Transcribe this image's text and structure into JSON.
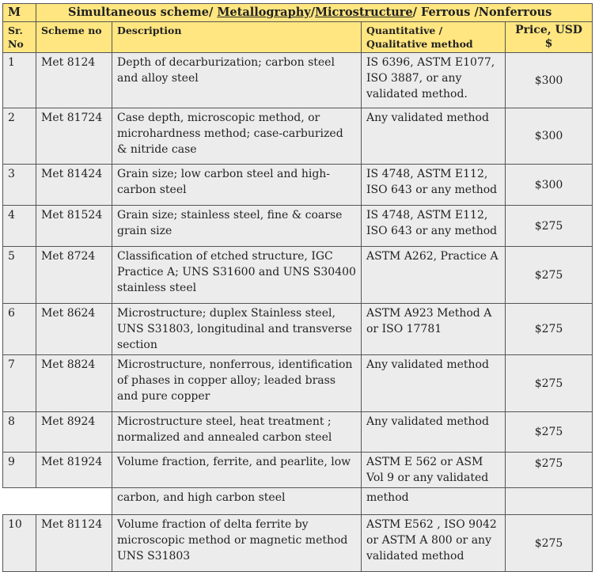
{
  "header": {
    "col_m": "M",
    "title_parts": [
      "Simultaneous scheme/ ",
      "Metallography",
      "/",
      "Microstructure",
      "/ Ferrous /Nonferrous"
    ],
    "sr_no": "Sr. No",
    "scheme_no": "Scheme no",
    "description": "Description",
    "method": "Quantitative / Qualitative method",
    "price": "Price, USD $"
  },
  "rows": [
    {
      "sr": "1",
      "scheme": "Met 8124",
      "desc": "Depth of decarburization;  carbon steel  and alloy steel",
      "method": "IS 6396, ASTM E1077, ISO 3887, or any validated method.",
      "price": "$300"
    },
    {
      "sr": "2",
      "scheme": "Met 81724",
      "desc": "Case depth, microscopic method, or microhardness method;  case-carburized  & nitride case",
      "method": "Any validated method",
      "price": "$300"
    },
    {
      "sr": "3",
      "scheme": "Met 81424",
      "desc": "Grain size; low carbon steel  and  high-carbon steel",
      "method": "IS 4748, ASTM E112, ISO 643 or any method",
      "price": "$300"
    },
    {
      "sr": "4",
      "scheme": "Met 81524",
      "desc": "Grain size; stainless steel, fine  &  coarse grain size",
      "method": "IS 4748, ASTM E112, ISO 643 or any method",
      "price": "$275"
    },
    {
      "sr": "5",
      "scheme": "Met 8724",
      "desc": "Classification of etched structure, IGC Practice A;  UNS S31600 and  UNS S30400 stainless steel",
      "method": "ASTM A262, Practice A",
      "price": "$275"
    },
    {
      "sr": "6",
      "scheme": "Met 8624",
      "desc": "Microstructure;  duplex Stainless steel, UNS S31803, longitudinal and  transverse section",
      "method": "ASTM A923 Method A or ISO 17781",
      "price": "$275"
    },
    {
      "sr": "7",
      "scheme": "Met 8824",
      "desc": "Microstructure,  nonferrous,  identification of phases in copper alloy;  leaded brass  and pure copper",
      "method": "Any validated method",
      "price": "$275"
    },
    {
      "sr": "8",
      "scheme": "Met 8924",
      "desc": "Microstructure steel, heat treatment ; normalized and    annealed carbon steel",
      "method": "Any validated method",
      "price": "$275"
    },
    {
      "sr": "9",
      "scheme": "Met 81924",
      "desc": "Volume fraction, ferrite, and pearlite, low",
      "method": "ASTM E 562 or ASM Vol 9 or any validated",
      "price": "$275"
    },
    {
      "sr": "10",
      "scheme": "Met 81124",
      "desc": "Volume fraction of delta ferrite by microscopic method or magnetic method UNS S31803",
      "method": "ASTM E562 , ISO 9042 or ASTM A 800 or any validated method",
      "price": "$275"
    }
  ],
  "row9_continuation": {
    "desc": "carbon, and high carbon steel",
    "method": "method"
  }
}
